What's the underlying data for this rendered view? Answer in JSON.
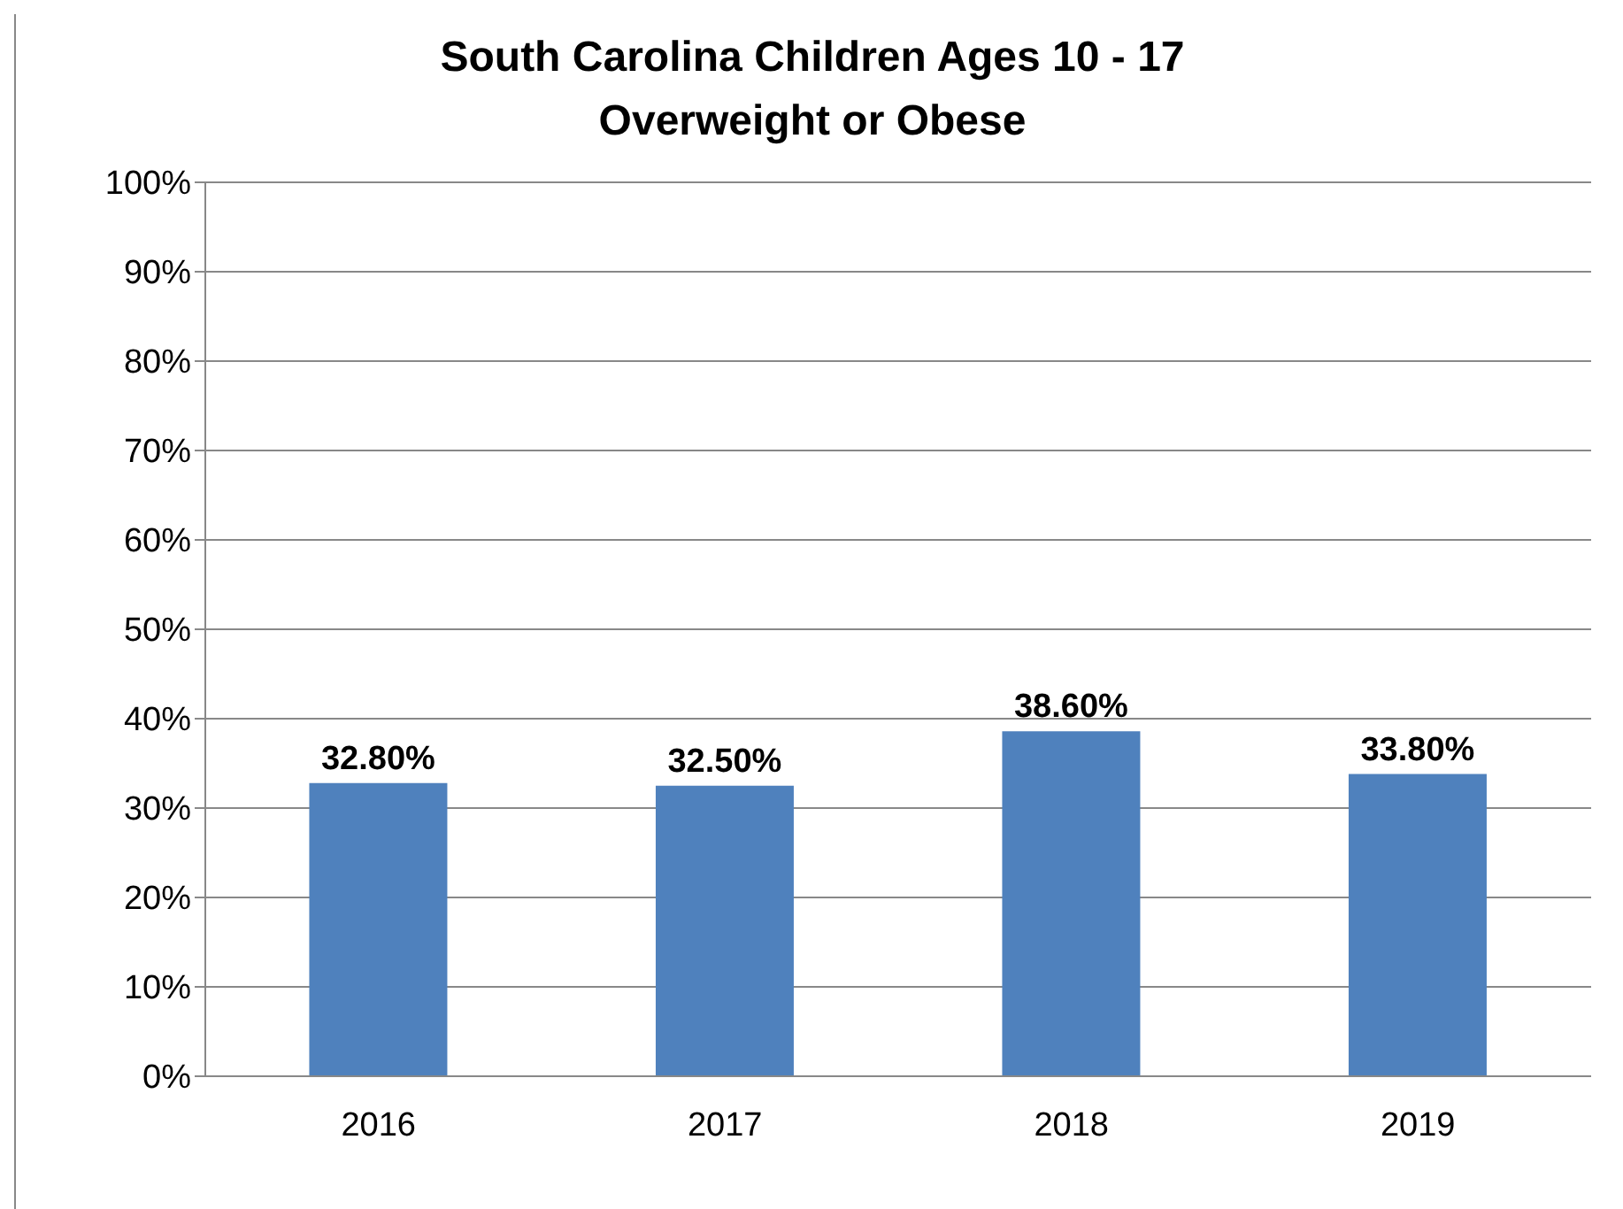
{
  "chart_data": {
    "type": "bar",
    "title": "South Carolina Children Ages 10 - 17\nOverweight or Obese",
    "categories": [
      "2016",
      "2017",
      "2018",
      "2019"
    ],
    "values": [
      32.8,
      32.5,
      38.6,
      33.8
    ],
    "value_labels": [
      "32.80%",
      "32.50%",
      "38.60%",
      "33.80%"
    ],
    "color": "#4f81bd",
    "ylim": [
      0,
      100
    ],
    "yticks": [
      {
        "value": 0,
        "label": "0%"
      },
      {
        "value": 10,
        "label": "10%"
      },
      {
        "value": 20,
        "label": "20%"
      },
      {
        "value": 30,
        "label": "30%"
      },
      {
        "value": 40,
        "label": "40%"
      },
      {
        "value": 50,
        "label": "50%"
      },
      {
        "value": 60,
        "label": "60%"
      },
      {
        "value": 70,
        "label": "70%"
      },
      {
        "value": 80,
        "label": "80%"
      },
      {
        "value": 90,
        "label": "90%"
      },
      {
        "value": 100,
        "label": "100%"
      }
    ],
    "grid": "y",
    "legend": false
  }
}
